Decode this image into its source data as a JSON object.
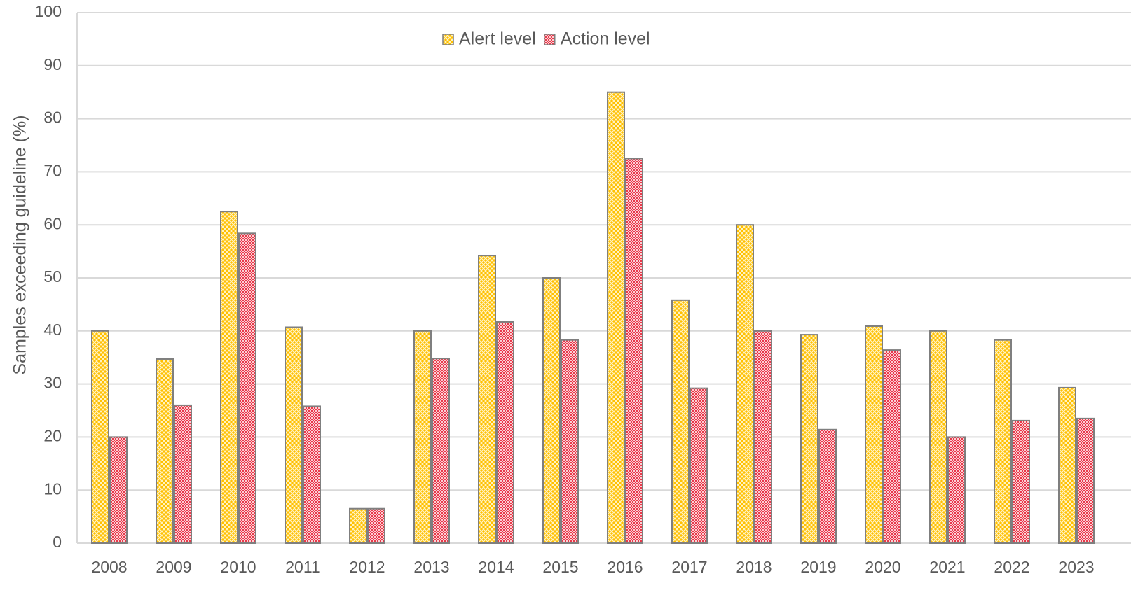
{
  "chart_data": {
    "type": "bar",
    "y_axis_label": "Samples exceeding guideline (%)",
    "categories": [
      "2008",
      "2009",
      "2010",
      "2011",
      "2012",
      "2013",
      "2014",
      "2015",
      "2016",
      "2017",
      "2018",
      "2019",
      "2020",
      "2021",
      "2022",
      "2023"
    ],
    "series": [
      {
        "name": "Alert level",
        "color": "#ffc000",
        "values": [
          40,
          34.7,
          62.5,
          40.7,
          6.5,
          40,
          54.2,
          50,
          85,
          45.8,
          60,
          39.3,
          40.9,
          40,
          38.3,
          29.3
        ]
      },
      {
        "name": "Action level",
        "color": "#e8394a",
        "values": [
          20,
          26,
          58.4,
          25.8,
          6.5,
          34.8,
          41.7,
          38.3,
          72.5,
          29.2,
          40,
          21.4,
          36.4,
          20,
          23.1,
          23.5
        ]
      }
    ],
    "ylim": [
      0,
      100
    ],
    "yticks": [
      0,
      10,
      20,
      30,
      40,
      50,
      60,
      70,
      80,
      90,
      100
    ],
    "grid": true,
    "legend": "top"
  }
}
